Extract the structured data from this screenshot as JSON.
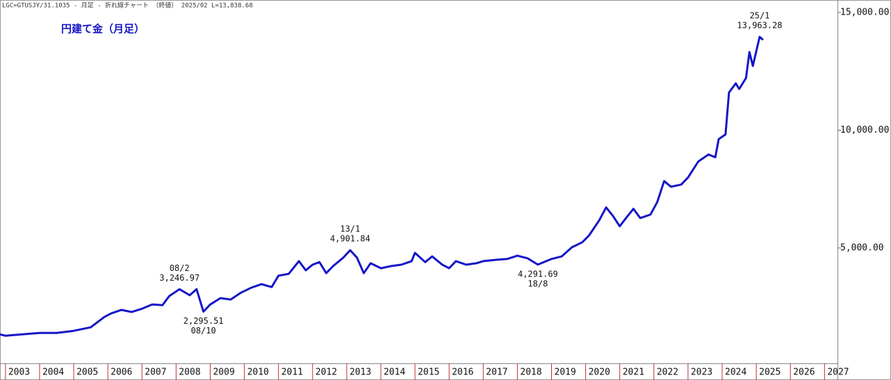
{
  "chart_data": {
    "type": "line",
    "header": "LGC=GTUSJY/31.1035 - 月足 - 折れ線チャート （終値） 2025/02 L=13,838.68",
    "title": "円建て金（月足）",
    "xlim": [
      2002.84,
      2027.38
    ],
    "xticks": [
      2003,
      2004,
      2005,
      2006,
      2007,
      2008,
      2009,
      2010,
      2011,
      2012,
      2013,
      2014,
      2015,
      2016,
      2017,
      2018,
      2019,
      2020,
      2021,
      2022,
      2023,
      2024,
      2025,
      2026,
      2027
    ],
    "ylim": [
      100,
      15530
    ],
    "yticks": [
      {
        "value": 5000,
        "label": "5,000.00"
      },
      {
        "value": 10000,
        "label": "10,000.00"
      },
      {
        "value": 15000,
        "label": "15,000.00"
      }
    ],
    "x": [
      2002.84,
      2003.0,
      2003.5,
      2004.0,
      2004.5,
      2005.0,
      2005.5,
      2005.9,
      2006.1,
      2006.4,
      2006.7,
      2007.0,
      2007.3,
      2007.6,
      2007.8,
      2008.1,
      2008.4,
      2008.6,
      2008.8,
      2009.0,
      2009.3,
      2009.6,
      2009.9,
      2010.2,
      2010.5,
      2010.8,
      2011.0,
      2011.3,
      2011.6,
      2011.8,
      2012.0,
      2012.2,
      2012.4,
      2012.6,
      2012.9,
      2013.1,
      2013.3,
      2013.5,
      2013.7,
      2014.0,
      2014.3,
      2014.6,
      2014.9,
      2015.0,
      2015.3,
      2015.5,
      2015.8,
      2016.0,
      2016.2,
      2016.5,
      2016.8,
      2017.0,
      2017.4,
      2017.7,
      2018.0,
      2018.3,
      2018.6,
      2019.0,
      2019.3,
      2019.6,
      2019.9,
      2020.1,
      2020.4,
      2020.6,
      2020.8,
      2021.0,
      2021.2,
      2021.4,
      2021.6,
      2021.9,
      2022.1,
      2022.3,
      2022.5,
      2022.8,
      2023.0,
      2023.3,
      2023.6,
      2023.8,
      2023.9,
      2024.1,
      2024.2,
      2024.4,
      2024.5,
      2024.7,
      2024.8,
      2024.9,
      2025.1,
      2025.2
    ],
    "series": [
      {
        "color": "#1515c8",
        "values": [
          1330,
          1270,
          1330,
          1390,
          1390,
          1480,
          1630,
          2070,
          2220,
          2370,
          2280,
          2420,
          2600,
          2570,
          2960,
          3246.97,
          2990,
          3250,
          2295.51,
          2600,
          2870,
          2810,
          3100,
          3310,
          3460,
          3340,
          3820,
          3900,
          4440,
          4050,
          4290,
          4400,
          3930,
          4230,
          4590,
          4901.84,
          4590,
          3930,
          4350,
          4140,
          4230,
          4290,
          4440,
          4790,
          4400,
          4640,
          4290,
          4140,
          4440,
          4290,
          4350,
          4440,
          4500,
          4530,
          4670,
          4560,
          4291.69,
          4530,
          4640,
          5030,
          5240,
          5530,
          6180,
          6720,
          6360,
          5920,
          6300,
          6660,
          6270,
          6420,
          6950,
          7840,
          7600,
          7690,
          7990,
          8670,
          8970,
          8850,
          9620,
          9820,
          11600,
          11990,
          11750,
          12220,
          13320,
          12730,
          13963.28,
          13840
        ]
      }
    ],
    "annotations": [
      {
        "label": "08/2",
        "value_label": "3,246.97",
        "x": 2008.1,
        "y": 3246.97,
        "position": "above"
      },
      {
        "label": "08/10",
        "value_label": "2,295.51",
        "x": 2008.8,
        "y": 2295.51,
        "position": "below"
      },
      {
        "label": "13/1",
        "value_label": "4,901.84",
        "x": 2013.1,
        "y": 4901.84,
        "position": "above"
      },
      {
        "label": "18/8",
        "value_label": "4,291.69",
        "x": 2018.6,
        "y": 4291.69,
        "position": "below"
      },
      {
        "label": "25/1",
        "value_label": "13,963.28",
        "x": 2025.1,
        "y": 13963.28,
        "position": "above"
      }
    ]
  }
}
